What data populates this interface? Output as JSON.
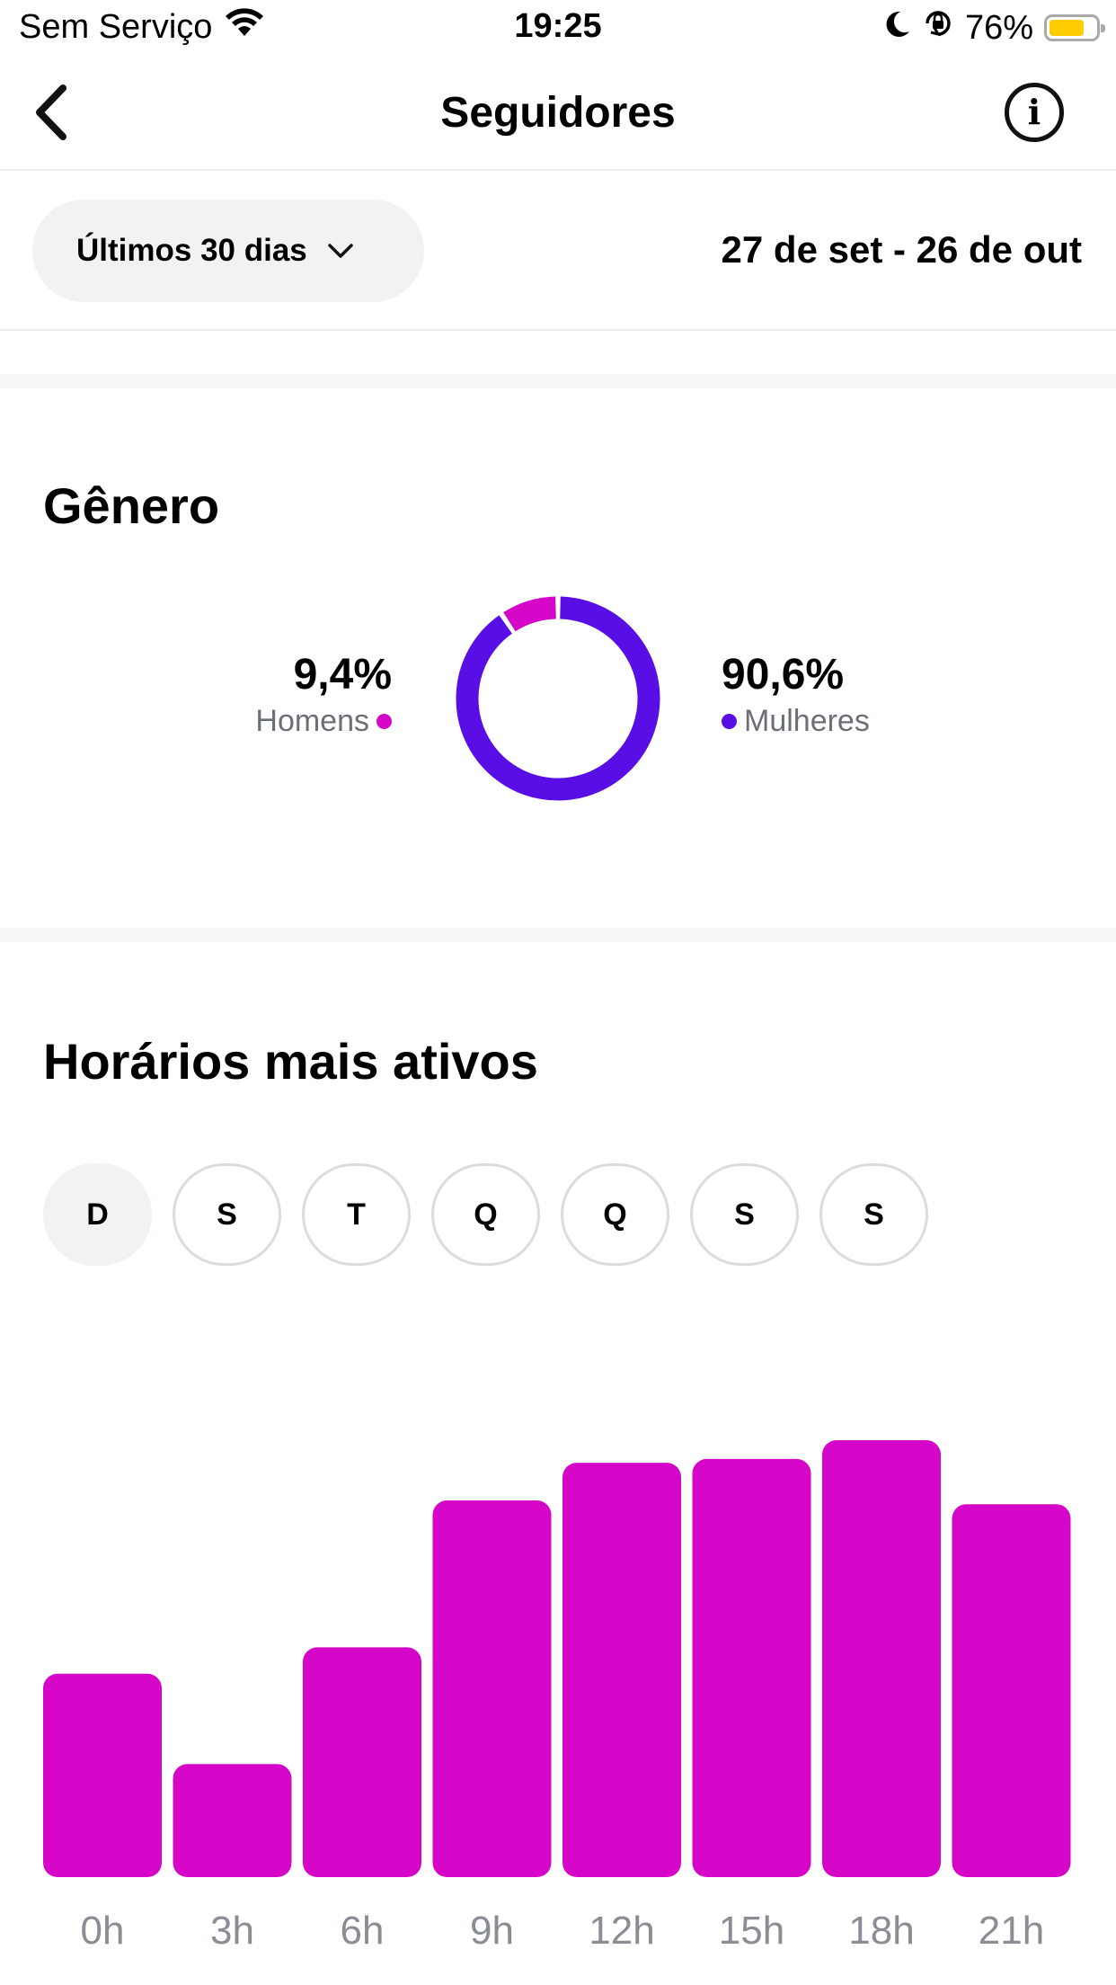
{
  "status_bar": {
    "carrier": "Sem Serviço",
    "time": "19:25",
    "battery": "76%",
    "battery_level": 0.76,
    "icons": [
      "wifi-icon",
      "moon-icon",
      "orientation-lock-icon",
      "battery-icon"
    ]
  },
  "nav": {
    "title": "Seguidores",
    "back_icon": "chevron-left-icon",
    "info_icon": "info-icon",
    "info_glyph": "i"
  },
  "filter": {
    "period_label": "Últimos 30 dias",
    "date_range": "27 de set - 26 de out"
  },
  "gender": {
    "title": "Gênero",
    "men_pct": "9,4%",
    "men_label": "Homens",
    "women_pct": "90,6%",
    "women_label": "Mulheres",
    "men_fraction": 0.094,
    "women_fraction": 0.906,
    "colors": {
      "men": "#d606c8",
      "women": "#5a0ee6"
    }
  },
  "active_times": {
    "title": "Horários mais ativos",
    "days": [
      "D",
      "S",
      "T",
      "Q",
      "Q",
      "S",
      "S"
    ],
    "selected_day_index": 0
  },
  "chart_data": [
    {
      "type": "pie",
      "categories": [
        "Homens",
        "Mulheres"
      ],
      "values": [
        9.4,
        90.6
      ],
      "title": "Gênero"
    },
    {
      "type": "bar",
      "title": "Horários mais ativos",
      "categories": [
        "0h",
        "3h",
        "6h",
        "9h",
        "12h",
        "15h",
        "18h",
        "21h"
      ],
      "values": [
        54,
        30,
        61,
        100,
        110,
        111,
        116,
        99
      ],
      "ylim": [
        0,
        116
      ],
      "color": "#d606c8",
      "grid": false
    }
  ]
}
